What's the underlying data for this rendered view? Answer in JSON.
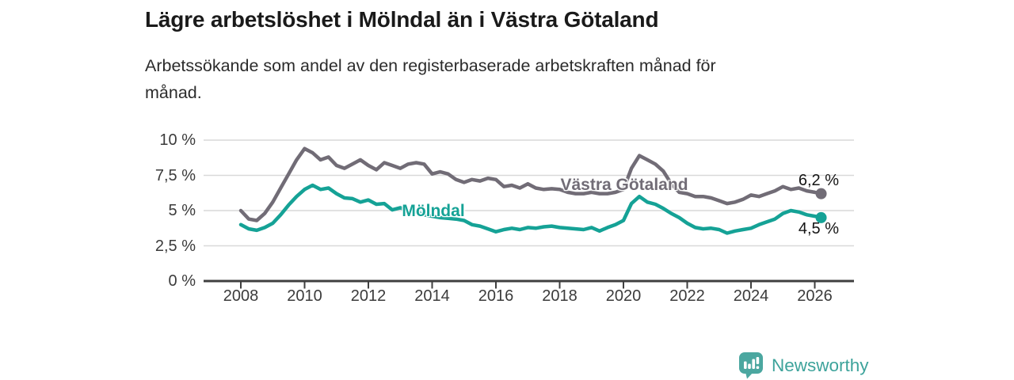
{
  "header": {
    "title": "Lägre arbetslöshet i Mölndal än i Västra Götaland",
    "subtitle": "Arbetssökande som andel av den registerbaserade arbetskraften månad för månad.",
    "subtitle_line1": "Arbetssökande som andel av den registerbaserade arbetskraften månad för",
    "subtitle_line2": "månad."
  },
  "chart_data": {
    "type": "line",
    "title": "Lägre arbetslöshet i Mölndal än i Västra Götaland",
    "subtitle": "Arbetssökande som andel av den registerbaserade arbetskraften månad för månad.",
    "unit": "%",
    "grid": true,
    "legend_position": "inline-labels-on-lines",
    "x_axis": {
      "tick_labels": [
        "2008",
        "2010",
        "2012",
        "2014",
        "2016",
        "2018",
        "2020",
        "2022",
        "2024",
        "2026"
      ],
      "tick_values": [
        2008,
        2010,
        2012,
        2014,
        2016,
        2018,
        2020,
        2022,
        2024,
        2026
      ],
      "range": [
        2006.9,
        2027.3
      ]
    },
    "y_axis": {
      "tick_labels": [
        "0 %",
        "2,5 %",
        "5 %",
        "7,5 %",
        "10 %"
      ],
      "tick_values": [
        0,
        2.5,
        5,
        7.5,
        10
      ],
      "range": [
        0,
        10
      ]
    },
    "x": [
      2008,
      2008.25,
      2008.5,
      2008.75,
      2009,
      2009.25,
      2009.5,
      2009.75,
      2010,
      2010.25,
      2010.5,
      2010.75,
      2011,
      2011.25,
      2011.5,
      2011.75,
      2012,
      2012.25,
      2012.5,
      2012.75,
      2013,
      2013.25,
      2013.5,
      2013.75,
      2014,
      2014.25,
      2014.5,
      2014.75,
      2015,
      2015.25,
      2015.5,
      2015.75,
      2016,
      2016.25,
      2016.5,
      2016.75,
      2017,
      2017.25,
      2017.5,
      2017.75,
      2018,
      2018.25,
      2018.5,
      2018.75,
      2019,
      2019.25,
      2019.5,
      2019.75,
      2020,
      2020.25,
      2020.5,
      2020.75,
      2021,
      2021.25,
      2021.5,
      2021.75,
      2022,
      2022.25,
      2022.5,
      2022.75,
      2023,
      2023.25,
      2023.5,
      2023.75,
      2024,
      2024.25,
      2024.5,
      2024.75,
      2025,
      2025.25,
      2025.5,
      2025.75,
      2026,
      2026.2
    ],
    "series": [
      {
        "name": "Västra Götaland",
        "color": "#716c76",
        "end_label": "6,2 %",
        "end_value": 6.2,
        "values": [
          5.0,
          4.4,
          4.3,
          4.8,
          5.6,
          6.6,
          7.6,
          8.6,
          9.4,
          9.1,
          8.6,
          8.8,
          8.2,
          8.0,
          8.3,
          8.6,
          8.2,
          7.9,
          8.4,
          8.2,
          8.0,
          8.3,
          8.4,
          8.3,
          7.6,
          7.75,
          7.6,
          7.2,
          7.0,
          7.2,
          7.1,
          7.3,
          7.2,
          6.7,
          6.8,
          6.6,
          6.9,
          6.6,
          6.5,
          6.55,
          6.5,
          6.3,
          6.2,
          6.2,
          6.3,
          6.2,
          6.2,
          6.3,
          6.5,
          8.0,
          8.9,
          8.6,
          8.3,
          7.8,
          6.9,
          6.3,
          6.2,
          6.0,
          6.0,
          5.9,
          5.7,
          5.5,
          5.6,
          5.8,
          6.1,
          6.0,
          6.2,
          6.4,
          6.7,
          6.5,
          6.6,
          6.4,
          6.3,
          6.2
        ]
      },
      {
        "name": "Mölndal",
        "color": "#15a296",
        "end_label": "4,5 %",
        "end_value": 4.5,
        "values": [
          4.0,
          3.7,
          3.6,
          3.8,
          4.1,
          4.7,
          5.4,
          6.0,
          6.5,
          6.8,
          6.5,
          6.6,
          6.2,
          5.9,
          5.85,
          5.6,
          5.75,
          5.45,
          5.5,
          5.05,
          5.2,
          5.0,
          4.9,
          4.7,
          4.6,
          4.5,
          4.45,
          4.4,
          4.3,
          4.0,
          3.9,
          3.7,
          3.5,
          3.65,
          3.75,
          3.65,
          3.8,
          3.75,
          3.85,
          3.9,
          3.8,
          3.75,
          3.7,
          3.65,
          3.8,
          3.55,
          3.8,
          4.0,
          4.3,
          5.5,
          6.0,
          5.6,
          5.45,
          5.15,
          4.8,
          4.5,
          4.1,
          3.8,
          3.7,
          3.75,
          3.65,
          3.4,
          3.55,
          3.65,
          3.75,
          4.0,
          4.2,
          4.4,
          4.8,
          5.0,
          4.9,
          4.7,
          4.6,
          4.5
        ]
      }
    ],
    "style": {
      "gridline_color": "#d9d9d9",
      "axis_color": "#3f3f3f",
      "label_color": "#3b3b3b"
    }
  },
  "branding": {
    "name": "Newsworthy",
    "color": "#3da39b"
  }
}
